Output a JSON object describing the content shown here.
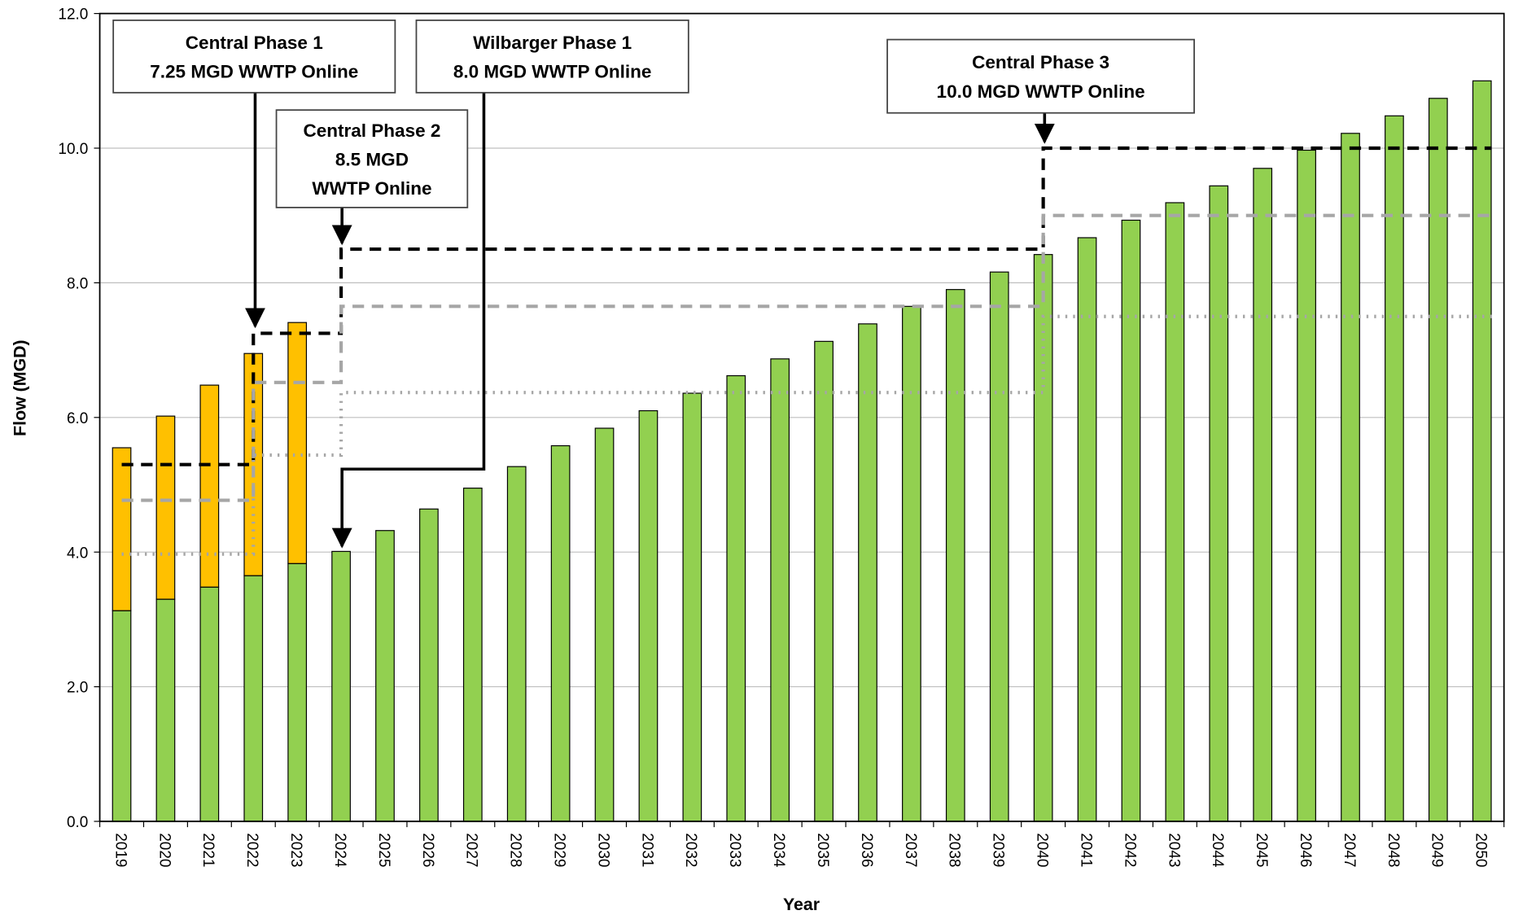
{
  "chart_data": {
    "type": "bar",
    "stacked": true,
    "x_label": "Year",
    "y_label": "Flow (MGD)",
    "categories": [
      "2019",
      "2020",
      "2021",
      "2022",
      "2023",
      "2024",
      "2025",
      "2026",
      "2027",
      "2028",
      "2029",
      "2030",
      "2031",
      "2032",
      "2033",
      "2034",
      "2035",
      "2036",
      "2037",
      "2038",
      "2039",
      "2040",
      "2041",
      "2042",
      "2043",
      "2044",
      "2045",
      "2046",
      "2047",
      "2048",
      "2049",
      "2050"
    ],
    "series": [
      {
        "color": "#92d050",
        "values": [
          3.13,
          3.3,
          3.48,
          3.65,
          3.83,
          4.01,
          4.32,
          4.64,
          4.95,
          5.27,
          5.58,
          5.84,
          6.1,
          6.36,
          6.62,
          6.87,
          7.13,
          7.39,
          7.65,
          7.9,
          8.16,
          8.42,
          8.67,
          8.93,
          9.19,
          9.44,
          9.7,
          9.97,
          10.22,
          10.48,
          10.74,
          11.0
        ]
      },
      {
        "color": "#ffc000",
        "values": [
          2.42,
          2.72,
          3.0,
          3.3,
          3.58,
          null,
          null,
          null,
          null,
          null,
          null,
          null,
          null,
          null,
          null,
          null,
          null,
          null,
          null,
          null,
          null,
          null,
          null,
          null,
          null,
          null,
          null,
          null,
          null,
          null,
          null,
          null
        ]
      }
    ],
    "step_lines": [
      {
        "color": "#000000",
        "style": "dashed",
        "values": [
          5.3,
          5.3,
          5.3,
          7.25,
          7.25,
          8.5,
          8.5,
          8.5,
          8.5,
          8.5,
          8.5,
          8.5,
          8.5,
          8.5,
          8.5,
          8.5,
          8.5,
          8.5,
          8.5,
          8.5,
          8.5,
          10.0,
          10.0,
          10.0,
          10.0,
          10.0,
          10.0,
          10.0,
          10.0,
          10.0,
          10.0,
          10.0
        ]
      },
      {
        "color": "#a6a6a6",
        "style": "dashed",
        "values": [
          4.77,
          4.77,
          4.77,
          6.52,
          6.52,
          7.65,
          7.65,
          7.65,
          7.65,
          7.65,
          7.65,
          7.65,
          7.65,
          7.65,
          7.65,
          7.65,
          7.65,
          7.65,
          7.65,
          7.65,
          7.65,
          9.0,
          9.0,
          9.0,
          9.0,
          9.0,
          9.0,
          9.0,
          9.0,
          9.0,
          9.0,
          9.0
        ]
      },
      {
        "color": "#a6a6a6",
        "style": "dotted",
        "values": [
          3.97,
          3.97,
          3.97,
          5.44,
          5.44,
          6.37,
          6.37,
          6.37,
          6.37,
          6.37,
          6.37,
          6.37,
          6.37,
          6.37,
          6.37,
          6.37,
          6.37,
          6.37,
          6.37,
          6.37,
          6.37,
          7.5,
          7.5,
          7.5,
          7.5,
          7.5,
          7.5,
          7.5,
          7.5,
          7.5,
          7.5,
          7.5
        ]
      }
    ],
    "ylim": [
      0,
      12
    ],
    "yticks": [
      {
        "value": 0,
        "label": "0.0"
      },
      {
        "value": 2,
        "label": "2.0"
      },
      {
        "value": 4,
        "label": "4.0"
      },
      {
        "value": 6,
        "label": "6.0"
      },
      {
        "value": 8,
        "label": "8.0"
      },
      {
        "value": 10,
        "label": "10.0"
      },
      {
        "value": 12,
        "label": "12.0"
      }
    ],
    "grid": true,
    "annotations": [
      {
        "lines": [
          "Central Phase 1",
          "7.25 MGD WWTP Online"
        ]
      },
      {
        "lines": [
          "Wilbarger Phase 1",
          "8.0 MGD WWTP Online"
        ]
      },
      {
        "lines": [
          "Central Phase 2",
          "8.5 MGD",
          "WWTP Online"
        ]
      },
      {
        "lines": [
          "Central Phase 3",
          "10.0 MGD WWTP Online"
        ]
      }
    ]
  }
}
